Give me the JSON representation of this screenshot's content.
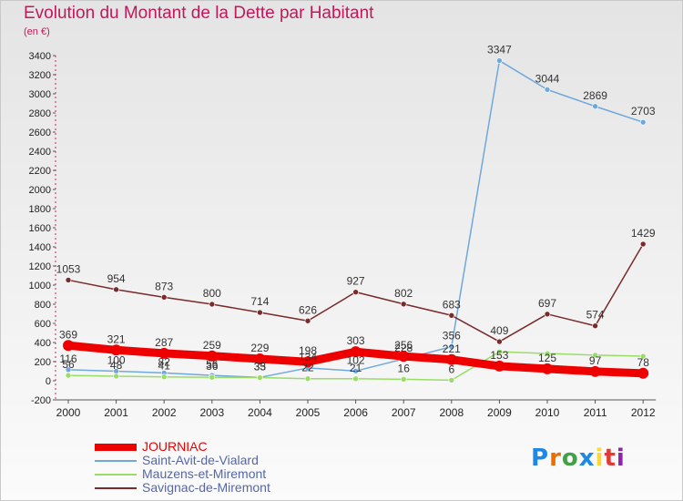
{
  "chart_data": {
    "type": "line",
    "title": "Evolution du Montant de la Dette par Habitant",
    "subtitle": "(en €)",
    "xlabel": "",
    "ylabel": "",
    "categories": [
      "2000",
      "2001",
      "2002",
      "2003",
      "2004",
      "2005",
      "2006",
      "2007",
      "2008",
      "2009",
      "2010",
      "2011",
      "2012"
    ],
    "ylim": [
      -200,
      3400
    ],
    "yticks": [
      -200,
      0,
      200,
      400,
      600,
      800,
      1000,
      1200,
      1400,
      1600,
      1800,
      2000,
      2200,
      2400,
      2600,
      2800,
      3000,
      3200,
      3400
    ],
    "grid": false,
    "legend_position": "bottom-left",
    "series": [
      {
        "name": "JOURNIAC",
        "color": "#ee0000",
        "emphasis": true,
        "values": [
          369,
          321,
          287,
          259,
          229,
          198,
          303,
          256,
          221,
          153,
          125,
          97,
          78
        ],
        "labels": [
          "369",
          "321",
          "287",
          "259",
          "229",
          "198",
          "303",
          "256",
          "221",
          "153",
          "125",
          "97",
          "78"
        ]
      },
      {
        "name": "Saint-Avit-de-Vialard",
        "color": "#6fa8dc",
        "emphasis": false,
        "values": [
          116,
          100,
          82,
          56,
          35,
          134,
          102,
          228,
          356,
          3347,
          3044,
          2869,
          2703
        ],
        "labels": [
          "116",
          "100",
          "82",
          "56",
          "35",
          "134",
          "102",
          "228",
          "356",
          "3347",
          "3044",
          "2869",
          "2703"
        ]
      },
      {
        "name": "Mauzens-et-Miremont",
        "color": "#99dd66",
        "emphasis": false,
        "values": [
          56,
          48,
          41,
          36,
          33,
          22,
          21,
          16,
          6,
          303,
          284,
          268,
          257
        ],
        "labels": [
          "56",
          "48",
          "41",
          "36",
          "33",
          "22",
          "21",
          "16",
          "6",
          "",
          "",
          "",
          ""
        ]
      },
      {
        "name": "Savignac-de-Miremont",
        "color": "#7a2a2a",
        "emphasis": false,
        "values": [
          1053,
          954,
          873,
          800,
          714,
          626,
          927,
          802,
          683,
          409,
          697,
          574,
          1429
        ],
        "labels": [
          "1053",
          "954",
          "873",
          "800",
          "714",
          "626",
          "927",
          "802",
          "683",
          "409",
          "697",
          "574",
          "1429"
        ]
      }
    ]
  },
  "brand": {
    "letters": [
      "P",
      "r",
      "o",
      "x",
      "i",
      "t",
      "i"
    ],
    "colors": [
      "#1e88e5",
      "#ef6c00",
      "#43a047",
      "#1e88e5",
      "#fdd835",
      "#e53935",
      "#8e24aa"
    ]
  }
}
